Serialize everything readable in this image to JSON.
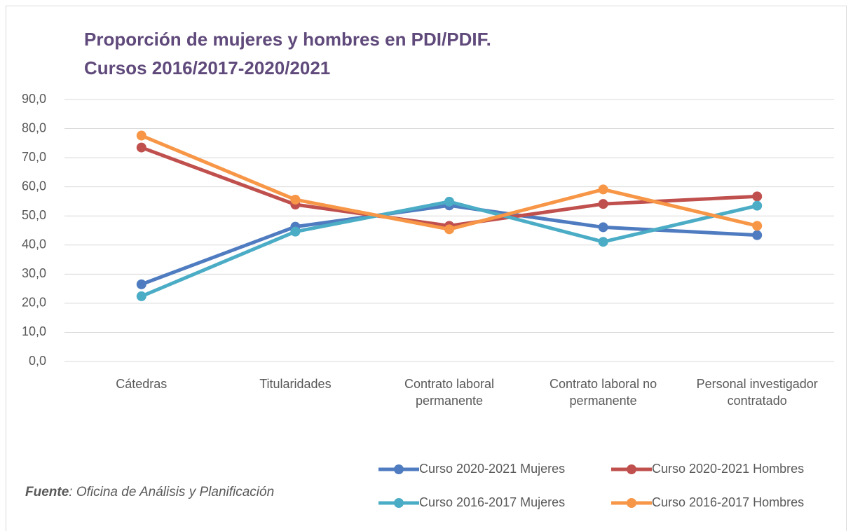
{
  "chart_data": {
    "type": "line",
    "title": "Proporción de mujeres y hombres en PDI/PDIF.",
    "subtitle": "Cursos 2016/2017-2020/2021",
    "categories": [
      "Cátedras",
      "Titularidades",
      "Contrato laboral permanente",
      "Contrato laboral no permanente",
      "Personal investigador contratado"
    ],
    "series": [
      {
        "name": "Curso 2020-2021 Mujeres",
        "color": "#4f7cc0",
        "values": [
          26.5,
          46.3,
          53.6,
          46.1,
          43.4
        ]
      },
      {
        "name": "Curso 2020-2021 Hombres",
        "color": "#c0504d",
        "values": [
          73.5,
          53.9,
          46.6,
          54.1,
          56.7
        ]
      },
      {
        "name": "Curso 2016-2017 Mujeres",
        "color": "#4bacc6",
        "values": [
          22.4,
          44.6,
          54.9,
          41.1,
          53.5
        ]
      },
      {
        "name": "Curso 2016-2017 Hombres",
        "color": "#f79646",
        "values": [
          77.6,
          55.6,
          45.4,
          59.1,
          46.6
        ]
      }
    ],
    "ylim": [
      0,
      90
    ],
    "yticks": [
      {
        "value": 0,
        "label": "0,0"
      },
      {
        "value": 10,
        "label": "10,0"
      },
      {
        "value": 20,
        "label": "20,0"
      },
      {
        "value": 30,
        "label": "30,0"
      },
      {
        "value": 40,
        "label": "40,0"
      },
      {
        "value": 50,
        "label": "50,0"
      },
      {
        "value": 60,
        "label": "60,0"
      },
      {
        "value": 70,
        "label": "70,0"
      },
      {
        "value": 80,
        "label": "80,0"
      },
      {
        "value": 90,
        "label": "90,0"
      }
    ],
    "grid": true,
    "legend": "bottom",
    "source": {
      "label": "Fuente",
      "text": ": Oficina de Análisis y Planificación"
    }
  }
}
